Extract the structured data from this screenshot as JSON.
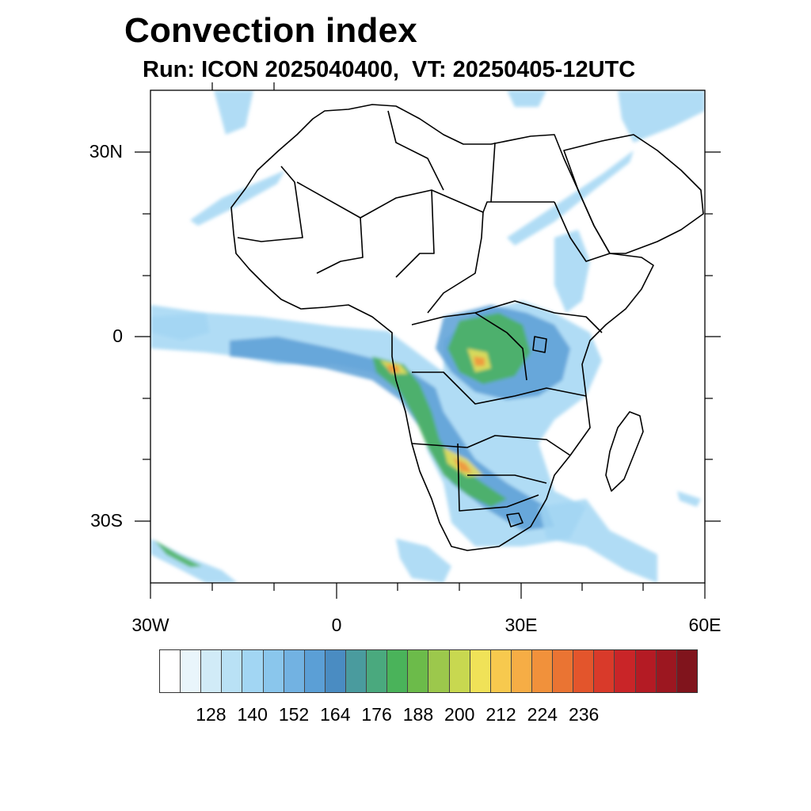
{
  "title": "Convection index",
  "subtitle": "Run: ICON 2025040400,  VT: 20250405-12UTC",
  "map": {
    "lon_range": [
      -30,
      60
    ],
    "lat_range": [
      -40,
      40
    ],
    "x_ticks": [
      "30W",
      "0",
      "30E",
      "60E"
    ],
    "y_ticks": [
      "30N",
      "0",
      "30S"
    ],
    "ocean_color": "#ffffff",
    "land_color": "#ffffff",
    "border_color": "#000000"
  },
  "colorbar": {
    "labels": [
      "128",
      "140",
      "152",
      "164",
      "176",
      "188",
      "200",
      "212",
      "224",
      "236"
    ],
    "colors": [
      "#ffffff",
      "#e9f5fb",
      "#d1ebf7",
      "#b9e1f5",
      "#a2d6f3",
      "#8ac6ec",
      "#72b2e2",
      "#5b9fd6",
      "#4a8cc2",
      "#4a9b9e",
      "#4aa97e",
      "#4ab35a",
      "#6cbb4a",
      "#9cc84c",
      "#c8d850",
      "#f0e258",
      "#f7c94e",
      "#f6ad45",
      "#f1913b",
      "#ea7433",
      "#e3552c",
      "#d93a2a",
      "#c92528",
      "#b41b24",
      "#9c1720",
      "#80141c"
    ]
  },
  "fields": {
    "light": "#a2d6f3",
    "mid": "#5b9fd6",
    "green": "#4ab35a",
    "yellow": "#f0e258",
    "orange": "#f1913b",
    "red": "#d93a2a"
  }
}
